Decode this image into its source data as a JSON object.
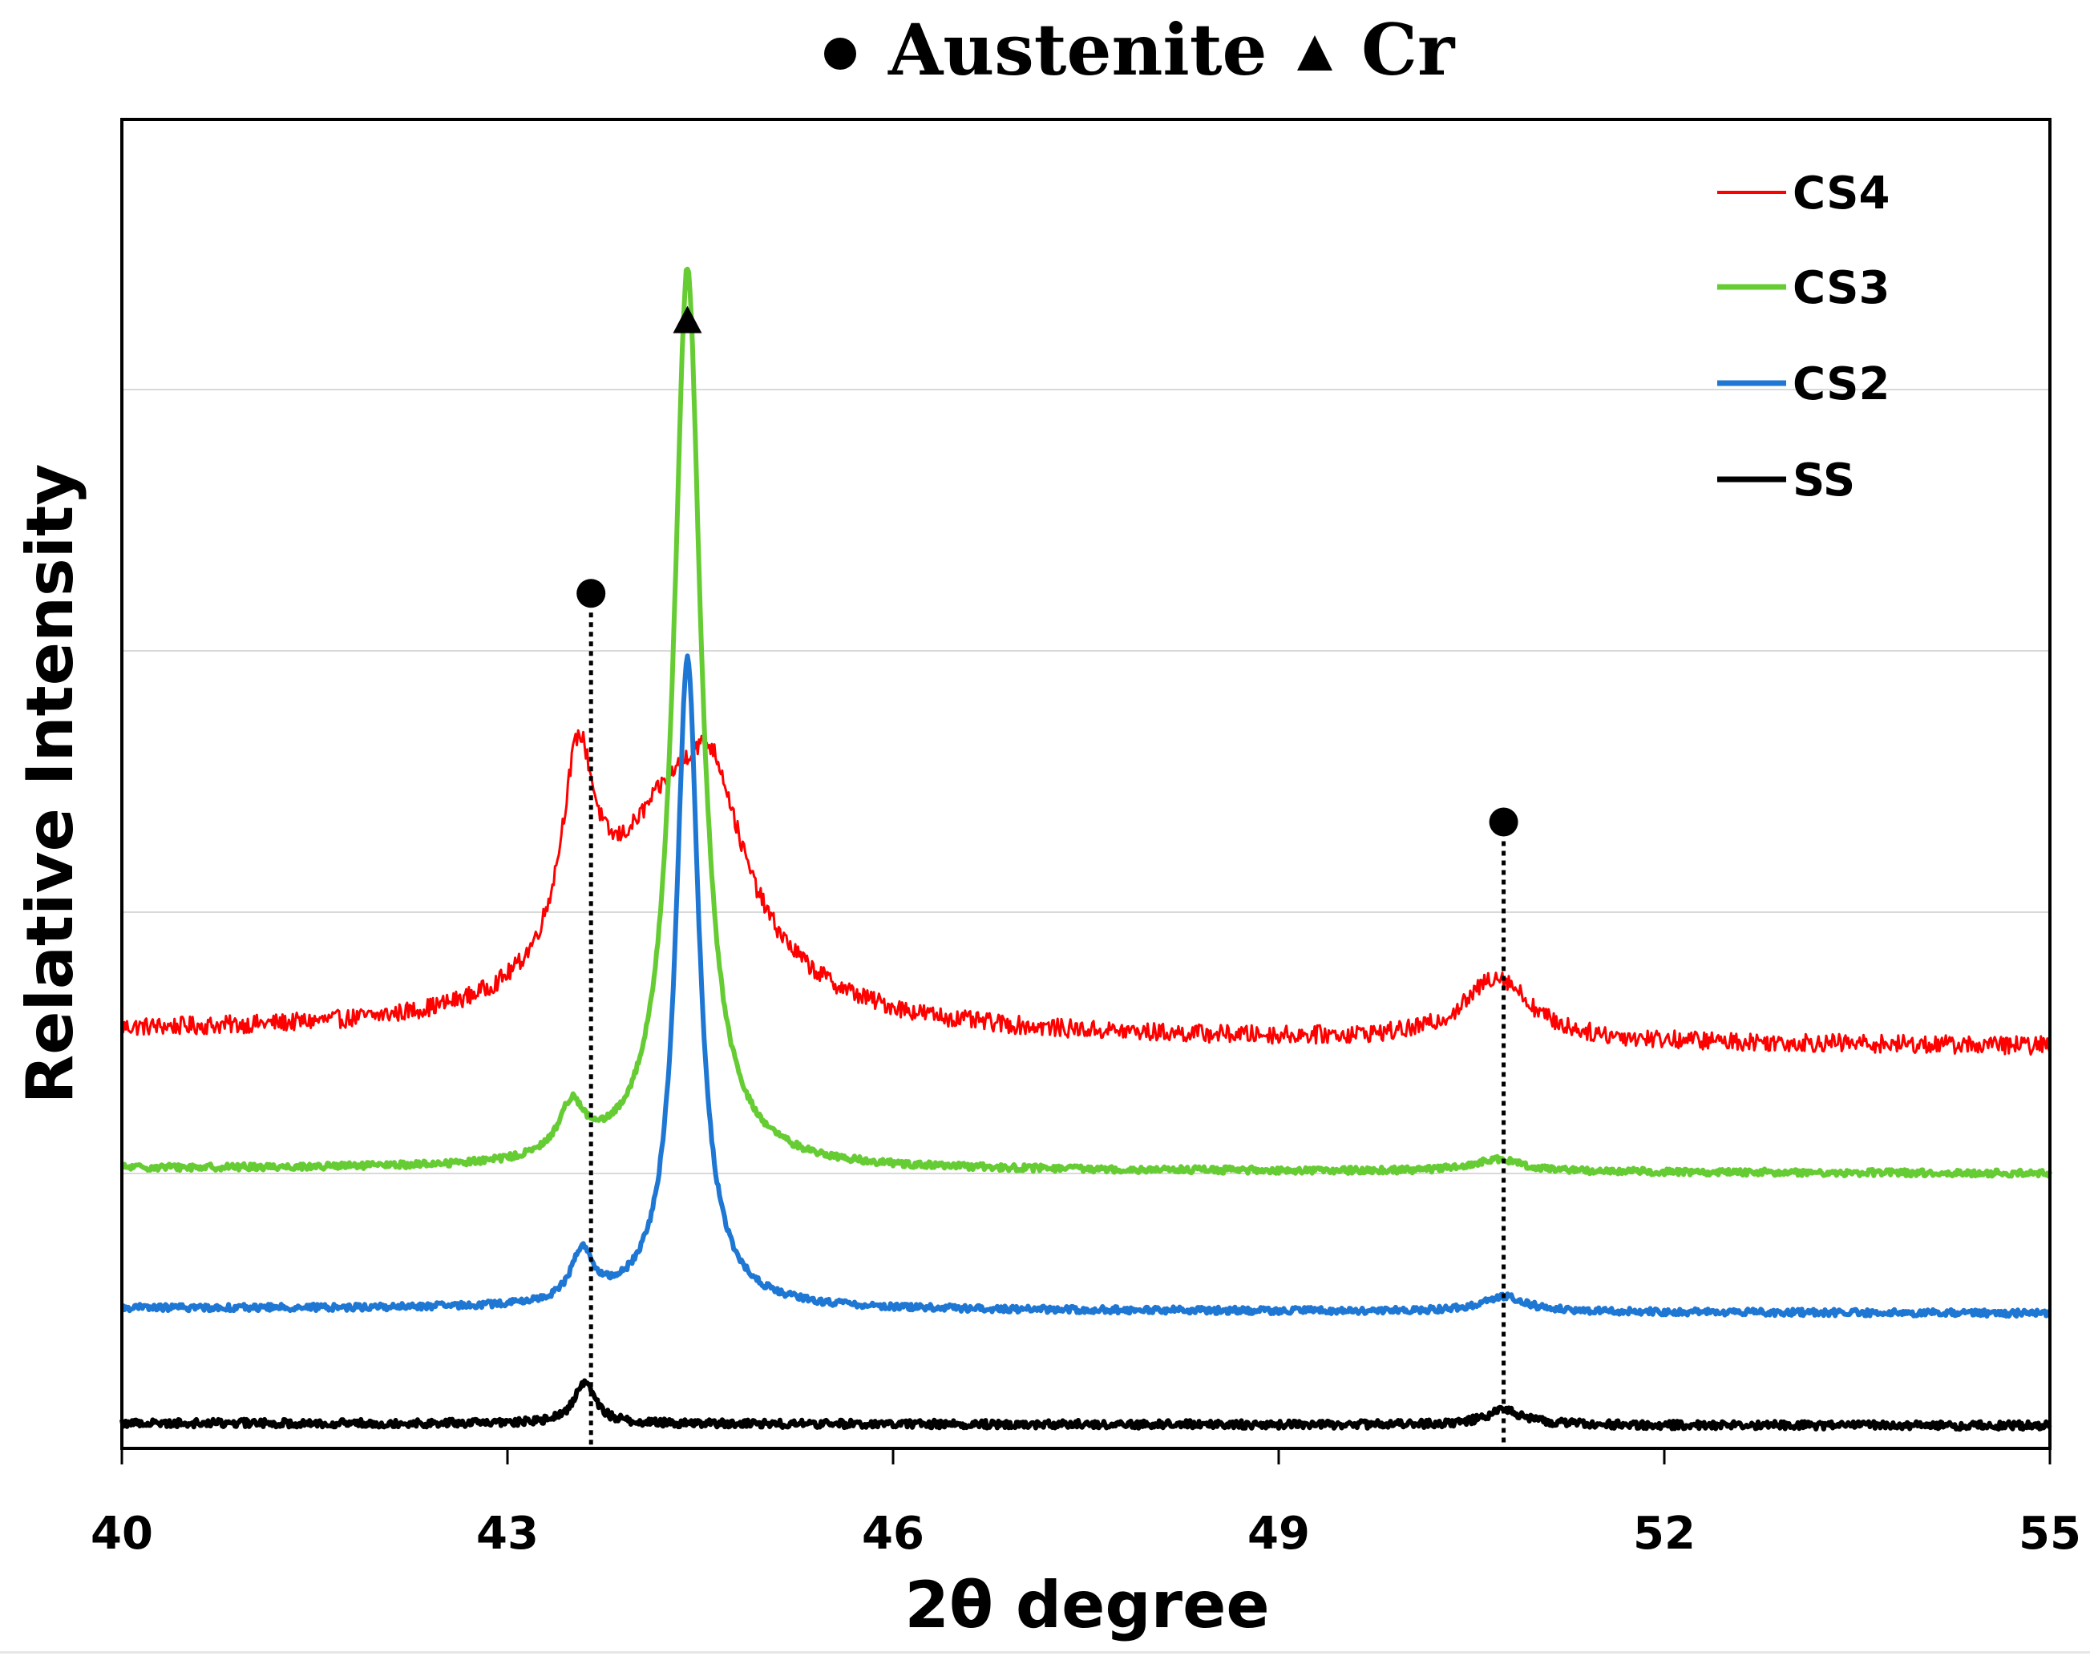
{
  "chart_data": {
    "type": "line",
    "title_markers": [
      {
        "symbol": "●",
        "label": "Austenite"
      },
      {
        "symbol": "▲",
        "label": "Cr"
      }
    ],
    "xlabel": "2θ degree",
    "ylabel": "Relative Intensity",
    "xlim": [
      40,
      55
    ],
    "ylim": [
      0,
      100
    ],
    "xticks": [
      40,
      43,
      46,
      49,
      52,
      55
    ],
    "grid": {
      "horizontal": true,
      "values": [
        20,
        40,
        60,
        80
      ]
    },
    "legend_position": "top-right",
    "series": [
      {
        "name": "CS4",
        "color": "#ff0000",
        "line_width": 3,
        "noise": 0.7,
        "baseline": [
          [
            40,
            30.8
          ],
          [
            55,
            29.7
          ]
        ],
        "peaks": [
          {
            "center": 43.55,
            "height": 15.5,
            "width": 0.16
          },
          {
            "center": 44.3,
            "height": 16.5,
            "width": 0.65
          },
          {
            "center": 44.6,
            "height": 8,
            "width": 0.25
          },
          {
            "center": 50.7,
            "height": 4.9,
            "width": 0.3
          }
        ]
      },
      {
        "name": "CS3",
        "color": "#66cc33",
        "line_width": 6,
        "noise": 0.25,
        "baseline": [
          [
            40,
            20.4
          ],
          [
            55,
            20.0
          ]
        ],
        "peaks": [
          {
            "center": 43.5,
            "height": 3.9,
            "width": 0.12
          },
          {
            "center": 44.4,
            "height": 62,
            "width": 0.12
          },
          {
            "center": 44.4,
            "height": 7,
            "width": 0.28
          },
          {
            "center": 50.7,
            "height": 0.9,
            "width": 0.25
          }
        ]
      },
      {
        "name": "CS2",
        "color": "#1f77d4",
        "line_width": 6,
        "noise": 0.25,
        "baseline": [
          [
            40,
            9.7
          ],
          [
            55,
            9.3
          ]
        ],
        "peaks": [
          {
            "center": 43.58,
            "height": 3.9,
            "width": 0.1
          },
          {
            "center": 44.4,
            "height": 44,
            "width": 0.1
          },
          {
            "center": 44.4,
            "height": 6,
            "width": 0.22
          },
          {
            "center": 50.75,
            "height": 1.2,
            "width": 0.2
          }
        ]
      },
      {
        "name": "SS",
        "color": "#000000",
        "line_width": 6,
        "noise": 0.3,
        "baseline": [
          [
            40,
            0.9
          ],
          [
            55,
            0.7
          ]
        ],
        "peaks": [
          {
            "center": 43.6,
            "height": 3.2,
            "width": 0.1
          },
          {
            "center": 50.75,
            "height": 1.1,
            "width": 0.18
          }
        ]
      }
    ],
    "annotations": [
      {
        "symbol": "▲",
        "phase": "Cr",
        "x": 44.4,
        "y": 85.3,
        "guide_line": false
      },
      {
        "symbol": "●",
        "phase": "Austenite",
        "x": 43.65,
        "y": 64.4,
        "guide_line": true,
        "guide_to": -1
      },
      {
        "symbol": "●",
        "phase": "Austenite",
        "x": 50.75,
        "y": 46.9,
        "guide_line": true,
        "guide_to": -1
      }
    ]
  }
}
